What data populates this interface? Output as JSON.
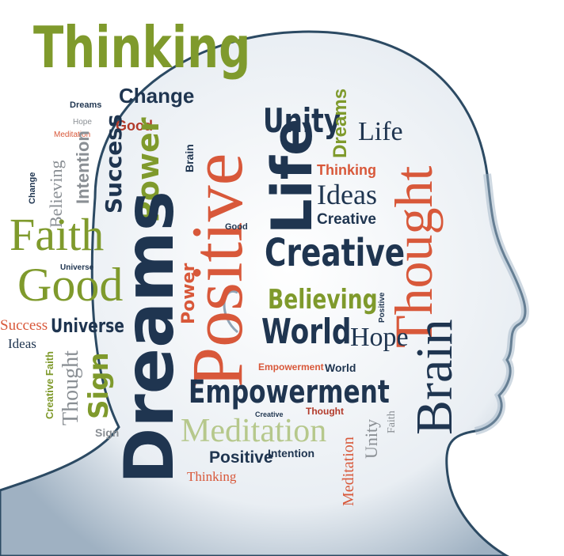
{
  "words": {
    "thinking_top": "Thinking",
    "change": "Change",
    "dreams_small": "Dreams",
    "good_small": "Good",
    "hope_small": "Hope",
    "meditation_small": "Meditation",
    "positive_big": "Positive",
    "unity": "Unity",
    "dreams_vert_right": "Dreams",
    "life_right": "Life",
    "thought_big": "Thought",
    "power": "Power",
    "success": "Success",
    "intention": "Intention",
    "brain_small": "Brain",
    "life_big": "Life",
    "thinking_mid": "Thinking",
    "ideas_mid": "Ideas",
    "creative_small": "Creative",
    "believing_left": "Believing",
    "change_left": "Change",
    "faith_big": "Faith",
    "good_big": "Good",
    "dreams_big": "Dreams",
    "creative_big": "Creative",
    "power_vert": "Power",
    "believing_mid": "Believing",
    "success_left": "Success",
    "universe": "Universe",
    "ideas_left": "Ideas",
    "world": "World",
    "hope_mid": "Hope",
    "brain_big": "Brain",
    "thought_left": "Thought",
    "sign": "Sign",
    "creative_faith": "Creative Faith",
    "empowerment_big": "Empowerment",
    "empowerment_small": "Empowerment",
    "world_small": "World",
    "thought_small": "Thought",
    "meditation_big": "Meditation",
    "unity_small": "Unity",
    "faith_small": "Faith",
    "positive_small": "Positive",
    "intention_small": "Intention",
    "thinking_bottom": "Thinking",
    "meditation_vert": "Meditation",
    "creative_tiny": "Creative",
    "good_tiny": "Good",
    "universe_tiny": "Universe",
    "positive_tiny": "Positive",
    "sign_small": "Sign"
  }
}
